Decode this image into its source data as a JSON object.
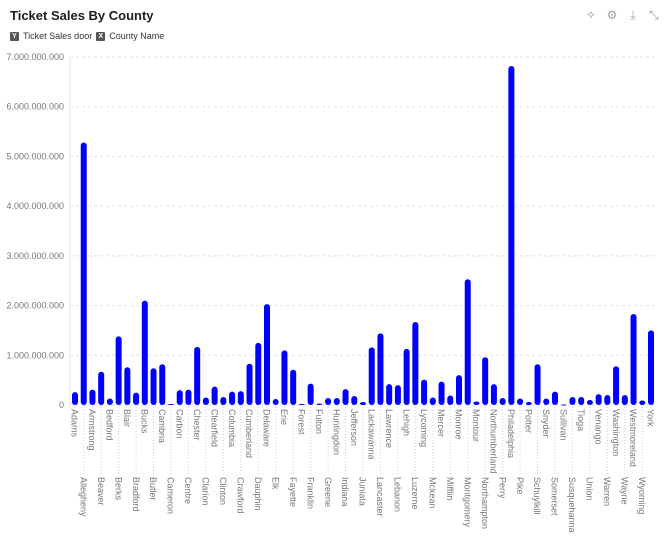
{
  "header": {
    "title": "Ticket Sales By County",
    "icons": [
      "magic-wand-icon",
      "sliders-icon",
      "download-icon",
      "collapse-icon"
    ]
  },
  "legend": [
    {
      "axis": "Y",
      "label": "Ticket Sales door"
    },
    {
      "axis": "X",
      "label": "County Name"
    }
  ],
  "colors": {
    "bar": "#0000ff",
    "grid": "#e3e3e3",
    "tick": "#777777"
  },
  "chart_data": {
    "type": "bar",
    "title": "Ticket Sales By County",
    "xlabel": "County Name",
    "ylabel": "Ticket Sales door",
    "ylim": [
      0,
      7000000000
    ],
    "yticks": [
      0,
      1000000000,
      2000000000,
      3000000000,
      4000000000,
      5000000000,
      6000000000,
      7000000000
    ],
    "ytick_labels": [
      "0",
      "1.000.000.000",
      "2.000.000.000",
      "3.000.000.000",
      "4.000.000.000",
      "5.000.000.000",
      "6.000.000.000",
      "7.000.000.000"
    ],
    "grid": true,
    "categories": [
      "Adams",
      "Allegheny",
      "Armstrong",
      "Beaver",
      "Bedford",
      "Berks",
      "Blair",
      "Bradford",
      "Bucks",
      "Butler",
      "Cambria",
      "Cameron",
      "Carbon",
      "Centre",
      "Chester",
      "Clarion",
      "Clearfield",
      "Clinton",
      "Columbia",
      "Crawford",
      "Cumberland",
      "Dauphin",
      "Delaware",
      "Elk",
      "Erie",
      "Fayette",
      "Forest",
      "Franklin",
      "Fulton",
      "Greene",
      "Huntingdon",
      "Indiana",
      "Jefferson",
      "Juniata",
      "Lackawanna",
      "Lancaster",
      "Lawrence",
      "Lebanon",
      "Lehigh",
      "Luzerne",
      "Lycoming",
      "Mckean",
      "Mercer",
      "Mifflin",
      "Monroe",
      "Montgomery",
      "Montour",
      "Northampton",
      "Northumberland",
      "Perry",
      "Philadelphia",
      "Pike",
      "Potter",
      "Schuylkill",
      "Snyder",
      "Somerset",
      "Sullivan",
      "Susquehanna",
      "Tioga",
      "Union",
      "Venango",
      "Warren",
      "Washington",
      "Wayne",
      "Westmoreland",
      "Wyoming",
      "York"
    ],
    "values": [
      260000000,
      5280000000,
      310000000,
      670000000,
      130000000,
      1380000000,
      760000000,
      250000000,
      2100000000,
      740000000,
      820000000,
      20000000,
      300000000,
      310000000,
      1170000000,
      150000000,
      370000000,
      160000000,
      270000000,
      280000000,
      830000000,
      1250000000,
      2030000000,
      120000000,
      1100000000,
      710000000,
      20000000,
      430000000,
      30000000,
      140000000,
      140000000,
      320000000,
      180000000,
      60000000,
      1160000000,
      1440000000,
      420000000,
      400000000,
      1130000000,
      1670000000,
      510000000,
      150000000,
      470000000,
      190000000,
      600000000,
      2530000000,
      70000000,
      960000000,
      420000000,
      140000000,
      6820000000,
      130000000,
      60000000,
      820000000,
      130000000,
      270000000,
      10000000,
      160000000,
      160000000,
      100000000,
      220000000,
      200000000,
      780000000,
      200000000,
      1830000000,
      90000000,
      1500000000
    ]
  }
}
